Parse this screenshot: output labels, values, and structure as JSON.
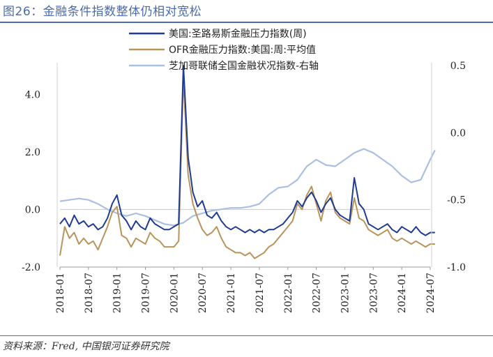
{
  "figure": {
    "title": "图26：金融条件指数整体仍相对宽松",
    "source": "资料来源：Fred, 中国银河证券研究院"
  },
  "chart_data": {
    "type": "line",
    "title": "",
    "xlabel": "",
    "ylabel": "",
    "x_tick_labels": [
      "2018-01",
      "2018-07",
      "2019-01",
      "2019-07",
      "2020-01",
      "2020-07",
      "2021-01",
      "2021-07",
      "2022-01",
      "2022-07",
      "2023-01",
      "2023-07",
      "2024-01",
      "2024-07"
    ],
    "xlim": [
      "2018-01",
      "2024-07"
    ],
    "ylim_left": [
      -2,
      5
    ],
    "ylim_right": [
      -1.0,
      0.5
    ],
    "y_left_ticks": [
      "-2.0",
      "0.0",
      "2.0",
      "4.0"
    ],
    "y_right_ticks": [
      "-1.0",
      "-0.5",
      "0.0",
      "0.5"
    ],
    "legend_position": "top-center",
    "series": [
      {
        "name": "美国:圣路易斯金融压力指数(周)",
        "axis": "left",
        "color": "#1f3a93",
        "points": [
          [
            "2018-01",
            -0.5
          ],
          [
            "2018-02",
            -0.3
          ],
          [
            "2018-03",
            -0.6
          ],
          [
            "2018-04",
            -0.2
          ],
          [
            "2018-05",
            -0.5
          ],
          [
            "2018-06",
            -0.4
          ],
          [
            "2018-07",
            -0.6
          ],
          [
            "2018-08",
            -0.5
          ],
          [
            "2018-09",
            -0.7
          ],
          [
            "2018-10",
            -0.6
          ],
          [
            "2018-11",
            -0.3
          ],
          [
            "2018-12",
            0.2
          ],
          [
            "2019-01",
            0.5
          ],
          [
            "2019-02",
            -0.2
          ],
          [
            "2019-03",
            -0.4
          ],
          [
            "2019-04",
            -0.7
          ],
          [
            "2019-05",
            -0.4
          ],
          [
            "2019-06",
            -0.6
          ],
          [
            "2019-07",
            -0.7
          ],
          [
            "2019-08",
            -0.3
          ],
          [
            "2019-09",
            -0.5
          ],
          [
            "2019-10",
            -0.6
          ],
          [
            "2019-11",
            -0.7
          ],
          [
            "2019-12",
            -0.7
          ],
          [
            "2020-01",
            -0.6
          ],
          [
            "2020-02",
            -0.5
          ],
          [
            "2020-03",
            5.0
          ],
          [
            "2020-04",
            1.8
          ],
          [
            "2020-05",
            0.6
          ],
          [
            "2020-06",
            0.1
          ],
          [
            "2020-07",
            0.3
          ],
          [
            "2020-08",
            -0.2
          ],
          [
            "2020-09",
            -0.3
          ],
          [
            "2020-10",
            -0.1
          ],
          [
            "2020-11",
            -0.4
          ],
          [
            "2020-12",
            -0.6
          ],
          [
            "2021-01",
            -0.7
          ],
          [
            "2021-02",
            -0.6
          ],
          [
            "2021-03",
            -0.7
          ],
          [
            "2021-04",
            -0.8
          ],
          [
            "2021-05",
            -0.7
          ],
          [
            "2021-06",
            -0.8
          ],
          [
            "2021-07",
            -0.7
          ],
          [
            "2021-08",
            -0.8
          ],
          [
            "2021-09",
            -0.7
          ],
          [
            "2021-10",
            -0.7
          ],
          [
            "2021-11",
            -0.6
          ],
          [
            "2021-12",
            -0.5
          ],
          [
            "2022-01",
            -0.3
          ],
          [
            "2022-02",
            -0.1
          ],
          [
            "2022-03",
            0.3
          ],
          [
            "2022-04",
            0.1
          ],
          [
            "2022-05",
            0.4
          ],
          [
            "2022-06",
            0.6
          ],
          [
            "2022-07",
            0.3
          ],
          [
            "2022-08",
            -0.1
          ],
          [
            "2022-09",
            0.2
          ],
          [
            "2022-10",
            0.4
          ],
          [
            "2022-11",
            0.0
          ],
          [
            "2022-12",
            -0.2
          ],
          [
            "2023-01",
            -0.3
          ],
          [
            "2023-02",
            -0.4
          ],
          [
            "2023-03",
            1.1
          ],
          [
            "2023-04",
            0.2
          ],
          [
            "2023-05",
            0.0
          ],
          [
            "2023-06",
            -0.5
          ],
          [
            "2023-07",
            -0.6
          ],
          [
            "2023-08",
            -0.7
          ],
          [
            "2023-09",
            -0.6
          ],
          [
            "2023-10",
            -0.5
          ],
          [
            "2023-11",
            -0.7
          ],
          [
            "2023-12",
            -0.8
          ],
          [
            "2024-01",
            -0.6
          ],
          [
            "2024-02",
            -0.7
          ],
          [
            "2024-03",
            -0.8
          ],
          [
            "2024-04",
            -0.6
          ],
          [
            "2024-05",
            -0.8
          ],
          [
            "2024-06",
            -0.9
          ],
          [
            "2024-07",
            -0.8
          ],
          [
            "2024-08",
            -0.8
          ]
        ]
      },
      {
        "name": "OFR金融压力指数:美国:周:平均值",
        "axis": "left",
        "color": "#b8935a",
        "points": [
          [
            "2018-01",
            -1.6
          ],
          [
            "2018-02",
            -0.6
          ],
          [
            "2018-03",
            -1.0
          ],
          [
            "2018-04",
            -0.8
          ],
          [
            "2018-05",
            -1.2
          ],
          [
            "2018-06",
            -1.0
          ],
          [
            "2018-07",
            -1.2
          ],
          [
            "2018-08",
            -1.1
          ],
          [
            "2018-09",
            -1.4
          ],
          [
            "2018-10",
            -1.0
          ],
          [
            "2018-11",
            -0.6
          ],
          [
            "2018-12",
            -0.1
          ],
          [
            "2019-01",
            0.1
          ],
          [
            "2019-02",
            -0.9
          ],
          [
            "2019-03",
            -1.0
          ],
          [
            "2019-04",
            -1.3
          ],
          [
            "2019-05",
            -1.0
          ],
          [
            "2019-06",
            -1.1
          ],
          [
            "2019-07",
            -1.2
          ],
          [
            "2019-08",
            -0.8
          ],
          [
            "2019-09",
            -1.0
          ],
          [
            "2019-10",
            -1.1
          ],
          [
            "2019-11",
            -1.3
          ],
          [
            "2019-12",
            -1.3
          ],
          [
            "2020-01",
            -1.3
          ],
          [
            "2020-02",
            -1.1
          ],
          [
            "2020-03",
            4.6
          ],
          [
            "2020-04",
            1.2
          ],
          [
            "2020-05",
            0.2
          ],
          [
            "2020-06",
            -0.3
          ],
          [
            "2020-07",
            -0.7
          ],
          [
            "2020-08",
            -0.9
          ],
          [
            "2020-09",
            -0.8
          ],
          [
            "2020-10",
            -0.6
          ],
          [
            "2020-11",
            -1.0
          ],
          [
            "2020-12",
            -1.3
          ],
          [
            "2021-01",
            -1.4
          ],
          [
            "2021-02",
            -1.5
          ],
          [
            "2021-03",
            -1.5
          ],
          [
            "2021-04",
            -1.6
          ],
          [
            "2021-05",
            -1.5
          ],
          [
            "2021-06",
            -1.7
          ],
          [
            "2021-07",
            -1.6
          ],
          [
            "2021-08",
            -1.5
          ],
          [
            "2021-09",
            -1.3
          ],
          [
            "2021-10",
            -1.2
          ],
          [
            "2021-11",
            -1.0
          ],
          [
            "2021-12",
            -0.8
          ],
          [
            "2022-01",
            -0.6
          ],
          [
            "2022-02",
            -0.4
          ],
          [
            "2022-03",
            0.2
          ],
          [
            "2022-04",
            0.0
          ],
          [
            "2022-05",
            0.5
          ],
          [
            "2022-06",
            0.8
          ],
          [
            "2022-07",
            0.2
          ],
          [
            "2022-08",
            -0.4
          ],
          [
            "2022-09",
            0.3
          ],
          [
            "2022-10",
            0.6
          ],
          [
            "2022-11",
            -0.1
          ],
          [
            "2022-12",
            -0.3
          ],
          [
            "2023-01",
            -0.4
          ],
          [
            "2023-02",
            -0.5
          ],
          [
            "2023-03",
            0.4
          ],
          [
            "2023-04",
            -0.3
          ],
          [
            "2023-05",
            -0.4
          ],
          [
            "2023-06",
            -0.7
          ],
          [
            "2023-07",
            -0.8
          ],
          [
            "2023-08",
            -0.9
          ],
          [
            "2023-09",
            -0.8
          ],
          [
            "2023-10",
            -0.7
          ],
          [
            "2023-11",
            -1.0
          ],
          [
            "2023-12",
            -1.1
          ],
          [
            "2024-01",
            -1.0
          ],
          [
            "2024-02",
            -1.1
          ],
          [
            "2024-03",
            -1.2
          ],
          [
            "2024-04",
            -1.1
          ],
          [
            "2024-05",
            -1.2
          ],
          [
            "2024-06",
            -1.3
          ],
          [
            "2024-07",
            -1.2
          ],
          [
            "2024-08",
            -1.2
          ]
        ]
      },
      {
        "name": "芝加哥联储全国金融状况指数-右轴",
        "axis": "right",
        "color": "#a9bfe3",
        "points": [
          [
            "2018-01",
            -0.51
          ],
          [
            "2018-03",
            -0.5
          ],
          [
            "2018-05",
            -0.49
          ],
          [
            "2018-07",
            -0.5
          ],
          [
            "2018-09",
            -0.53
          ],
          [
            "2018-11",
            -0.57
          ],
          [
            "2019-01",
            -0.6
          ],
          [
            "2019-03",
            -0.62
          ],
          [
            "2019-05",
            -0.6
          ],
          [
            "2019-07",
            -0.62
          ],
          [
            "2019-09",
            -0.65
          ],
          [
            "2019-11",
            -0.68
          ],
          [
            "2020-01",
            -0.69
          ],
          [
            "2020-03",
            -0.67
          ],
          [
            "2020-05",
            -0.62
          ],
          [
            "2020-07",
            -0.6
          ],
          [
            "2020-09",
            -0.58
          ],
          [
            "2020-11",
            -0.57
          ],
          [
            "2021-01",
            -0.56
          ],
          [
            "2021-03",
            -0.56
          ],
          [
            "2021-05",
            -0.55
          ],
          [
            "2021-07",
            -0.53
          ],
          [
            "2021-09",
            -0.46
          ],
          [
            "2021-11",
            -0.41
          ],
          [
            "2022-01",
            -0.4
          ],
          [
            "2022-03",
            -0.35
          ],
          [
            "2022-05",
            -0.25
          ],
          [
            "2022-07",
            -0.2
          ],
          [
            "2022-09",
            -0.24
          ],
          [
            "2022-11",
            -0.25
          ],
          [
            "2023-01",
            -0.2
          ],
          [
            "2023-03",
            -0.15
          ],
          [
            "2023-05",
            -0.12
          ],
          [
            "2023-07",
            -0.15
          ],
          [
            "2023-09",
            -0.2
          ],
          [
            "2023-11",
            -0.25
          ],
          [
            "2024-01",
            -0.32
          ],
          [
            "2024-03",
            -0.37
          ],
          [
            "2024-05",
            -0.35
          ],
          [
            "2024-07",
            -0.2
          ],
          [
            "2024-08",
            -0.13
          ]
        ]
      }
    ]
  }
}
